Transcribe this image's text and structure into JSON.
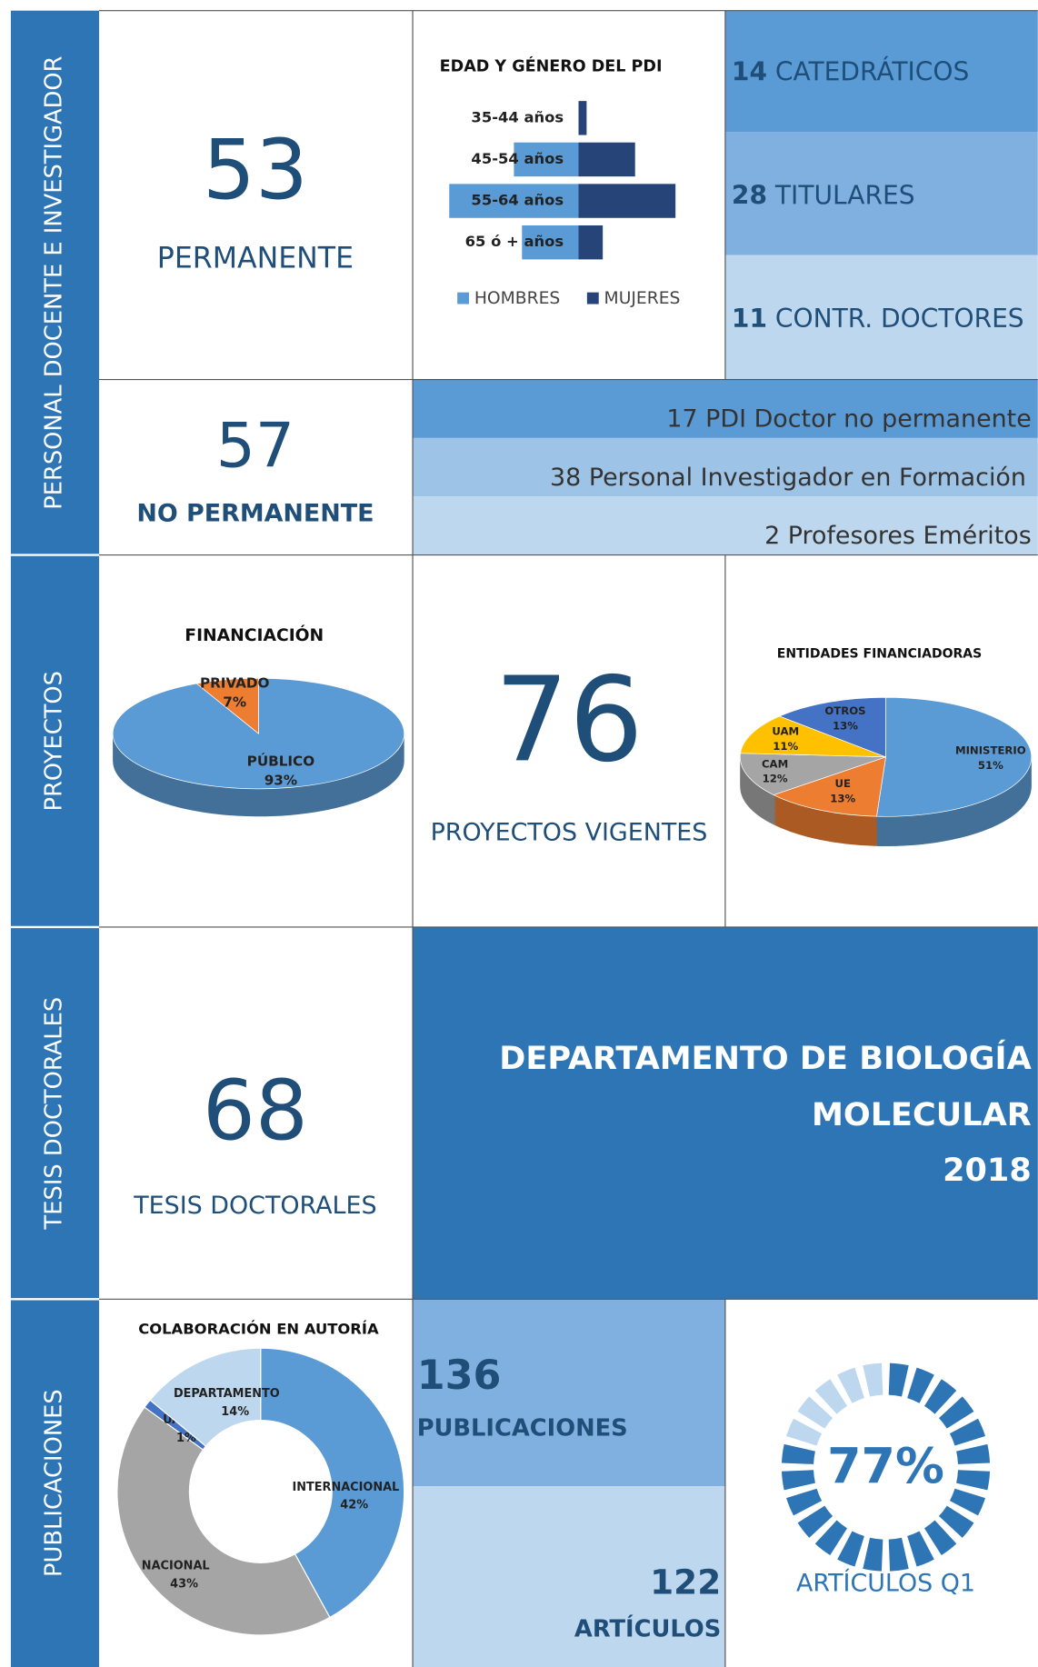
{
  "sections": [
    "PERSONAL DOCENTE E INVESTIGADOR",
    "PROYECTOS",
    "TESIS DOCTORALES",
    "PUBLICACIONES"
  ],
  "permanent": {
    "value": 53,
    "label": "PERMANENTE",
    "breakdown": [
      {
        "value": 14,
        "label": "CATEDRÁTICOS"
      },
      {
        "value": 28,
        "label": "TITULARES"
      },
      {
        "value": 11,
        "label": "CONTR. DOCTORES"
      }
    ]
  },
  "non_permanent": {
    "value": 57,
    "label": "NO PERMANENTE",
    "breakdown": [
      "17 PDI Doctor no permanente",
      "38 Personal Investigador en Formación",
      "2 Profesores Eméritos"
    ]
  },
  "projects": {
    "value": 76,
    "label": "PROYECTOS VIGENTES"
  },
  "theses": {
    "value": 68,
    "label": "TESIS DOCTORALES"
  },
  "banner": [
    "DEPARTAMENTO DE BIOLOGÍA",
    "MOLECULAR",
    "2018"
  ],
  "publications": {
    "value": 136,
    "label": "PUBLICACIONES"
  },
  "articles": {
    "value": 122,
    "label": "ARTÍCULOS"
  },
  "q1": {
    "value": 77,
    "value_label": "77%",
    "label": "ARTÍCULOS Q1"
  },
  "chart_data": [
    {
      "type": "pyramid",
      "title": "EDAD Y GÉNERO DEL PDI",
      "categories": [
        "35-44 años",
        "45-54 años",
        "55-64 años",
        "65 ó + años"
      ],
      "series": [
        {
          "name": "HOMBRES",
          "color": "#5b9bd5",
          "values": [
            0,
            8,
            16,
            7
          ]
        },
        {
          "name": "MUJERES",
          "color": "#264478",
          "values": [
            1,
            7,
            12,
            3
          ]
        }
      ]
    },
    {
      "type": "pie",
      "title": "FINANCIACIÓN",
      "labels": [
        "PÚBLICO",
        "PRIVADO"
      ],
      "values": [
        93,
        7
      ],
      "value_labels": [
        "93%",
        "7%"
      ],
      "colors": [
        "#5b9bd5",
        "#ed7d31"
      ]
    },
    {
      "type": "pie",
      "title": "ENTIDADES FINANCIADORAS",
      "labels": [
        "MINISTERIO",
        "UE",
        "CAM",
        "UAM",
        "OTROS"
      ],
      "values": [
        51,
        13,
        12,
        11,
        13
      ],
      "value_labels": [
        "51%",
        "13%",
        "12%",
        "11%",
        "13%"
      ],
      "colors": [
        "#5b9bd5",
        "#ed7d31",
        "#a5a5a5",
        "#ffc000",
        "#4472c4"
      ]
    },
    {
      "type": "donut",
      "title": "COLABORACIÓN EN AUTORÍA",
      "labels": [
        "INTERNACIONAL",
        "NACIONAL",
        "UAM",
        "DEPARTAMENTO"
      ],
      "values": [
        42,
        43,
        1,
        14
      ],
      "value_labels": [
        "42%",
        "43%",
        "1%",
        "14%"
      ],
      "colors": [
        "#5b9bd5",
        "#a5a5a5",
        "#4472c4",
        "#bdd7ee"
      ]
    }
  ]
}
